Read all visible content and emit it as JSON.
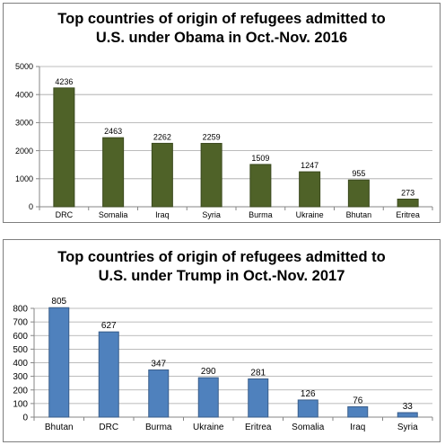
{
  "chart_data": [
    {
      "type": "bar",
      "title_lines": [
        "Top countries of origin of refugees admitted to",
        "U.S. under Obama in Oct.-Nov. 2016"
      ],
      "categories": [
        "DRC",
        "Somalia",
        "Iraq",
        "Syria",
        "Burma",
        "Ukraine",
        "Bhutan",
        "Eritrea"
      ],
      "values": [
        4236,
        2463,
        2262,
        2259,
        1509,
        1247,
        955,
        273
      ],
      "ylim": [
        0,
        5000
      ],
      "yticks": [
        0,
        1000,
        2000,
        3000,
        4000,
        5000
      ],
      "grid": true,
      "bar_color": "#4f6228",
      "bar_edge_color": "#3b4a1e",
      "data_labels": true
    },
    {
      "type": "bar",
      "title_lines": [
        "Top countries of origin of refugees admitted to",
        "U.S. under Trump in Oct.-Nov. 2017"
      ],
      "categories": [
        "Bhutan",
        "DRC",
        "Burma",
        "Ukraine",
        "Eritrea",
        "Somalia",
        "Iraq",
        "Syria"
      ],
      "values": [
        805,
        627,
        347,
        290,
        281,
        126,
        76,
        33
      ],
      "ylim": [
        0,
        800
      ],
      "yticks": [
        0,
        100,
        200,
        300,
        400,
        500,
        600,
        700,
        800
      ],
      "grid": true,
      "bar_color": "#4f81bd",
      "bar_edge_color": "#385d8a",
      "data_labels": true
    }
  ]
}
